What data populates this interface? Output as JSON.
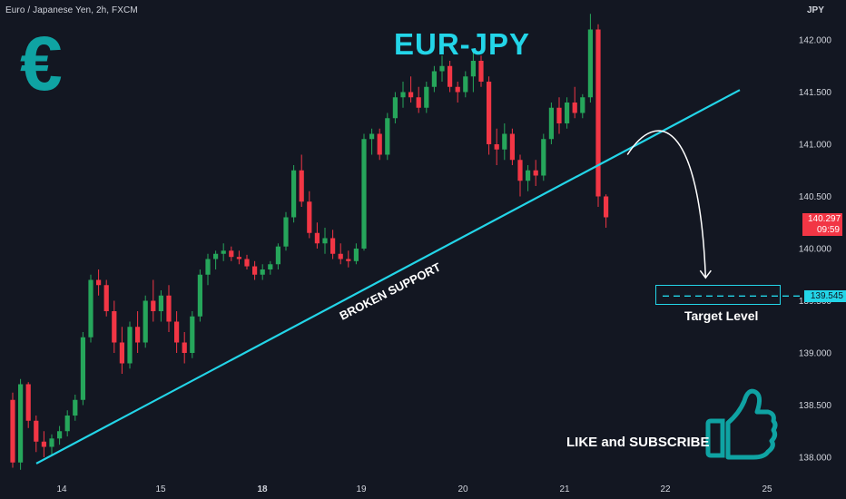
{
  "header": {
    "symbol_line": "Euro / Japanese Yen, 2h, FXCM",
    "currency": "JPY"
  },
  "title": "EUR-JPY",
  "logo_symbol": "€",
  "annotations": {
    "trendline_label": "BROKEN SUPPORT",
    "target_label": "Target Level",
    "cta": "LIKE and SUBSCRIBE"
  },
  "price_tags": {
    "last_price": "140.297",
    "countdown": "09:59",
    "target_price": "139.545"
  },
  "colors": {
    "background": "#131722",
    "up": "#26a65b",
    "down": "#f23645",
    "accent": "#23d5e8",
    "logo": "#0fa3a3"
  },
  "chart_data": {
    "type": "candlestick",
    "y_axis": {
      "ticks": [
        "142.000",
        "141.500",
        "141.000",
        "140.500",
        "140.000",
        "139.500",
        "139.000",
        "138.500",
        "138.000"
      ],
      "ylim": [
        137.8,
        142.3
      ]
    },
    "x_axis": {
      "ticks": [
        "14",
        "15",
        "18",
        "19",
        "20",
        "21",
        "22",
        "25"
      ],
      "bold_ticks": [
        "18"
      ]
    },
    "trendline": {
      "from": [
        0.0,
        137.94
      ],
      "to": [
        72.0,
        141.52
      ]
    },
    "target_level": 139.545,
    "projected_path": [
      [
        60.5,
        140.9
      ],
      [
        63.5,
        141.08
      ],
      [
        66.0,
        140.55
      ],
      [
        68.5,
        139.72
      ]
    ],
    "candles": [
      [
        138.55,
        138.62,
        137.9,
        137.95
      ],
      [
        137.95,
        138.75,
        137.88,
        138.7
      ],
      [
        138.7,
        138.72,
        138.28,
        138.35
      ],
      [
        138.35,
        138.4,
        138.05,
        138.15
      ],
      [
        138.15,
        138.25,
        138.0,
        138.1
      ],
      [
        138.1,
        138.22,
        138.02,
        138.18
      ],
      [
        138.18,
        138.3,
        138.12,
        138.25
      ],
      [
        138.25,
        138.45,
        138.2,
        138.4
      ],
      [
        138.4,
        138.6,
        138.35,
        138.55
      ],
      [
        138.55,
        139.2,
        138.5,
        139.15
      ],
      [
        139.15,
        139.75,
        139.1,
        139.7
      ],
      [
        139.7,
        139.8,
        139.55,
        139.65
      ],
      [
        139.65,
        139.7,
        139.35,
        139.4
      ],
      [
        139.4,
        139.5,
        139.0,
        139.1
      ],
      [
        139.1,
        139.25,
        138.8,
        138.9
      ],
      [
        138.9,
        139.3,
        138.85,
        139.25
      ],
      [
        139.25,
        139.4,
        139.0,
        139.1
      ],
      [
        139.1,
        139.55,
        139.05,
        139.5
      ],
      [
        139.5,
        139.7,
        139.3,
        139.4
      ],
      [
        139.4,
        139.6,
        139.3,
        139.55
      ],
      [
        139.55,
        139.65,
        139.2,
        139.3
      ],
      [
        139.3,
        139.4,
        139.0,
        139.1
      ],
      [
        139.1,
        139.2,
        138.9,
        139.0
      ],
      [
        139.0,
        139.4,
        138.95,
        139.35
      ],
      [
        139.35,
        139.8,
        139.3,
        139.75
      ],
      [
        139.75,
        139.95,
        139.65,
        139.9
      ],
      [
        139.9,
        139.98,
        139.8,
        139.95
      ],
      [
        139.95,
        140.05,
        139.88,
        139.98
      ],
      [
        139.98,
        140.02,
        139.88,
        139.92
      ],
      [
        139.92,
        139.98,
        139.85,
        139.9
      ],
      [
        139.9,
        139.94,
        139.8,
        139.83
      ],
      [
        139.83,
        139.88,
        139.7,
        139.75
      ],
      [
        139.75,
        139.85,
        139.7,
        139.8
      ],
      [
        139.8,
        139.88,
        139.75,
        139.85
      ],
      [
        139.85,
        140.05,
        139.8,
        140.02
      ],
      [
        140.02,
        140.35,
        139.98,
        140.3
      ],
      [
        140.3,
        140.8,
        140.25,
        140.75
      ],
      [
        140.75,
        140.9,
        140.4,
        140.45
      ],
      [
        140.45,
        140.55,
        140.1,
        140.15
      ],
      [
        140.15,
        140.25,
        140.0,
        140.05
      ],
      [
        140.05,
        140.2,
        139.95,
        140.1
      ],
      [
        140.1,
        140.18,
        139.9,
        139.95
      ],
      [
        139.95,
        140.05,
        139.85,
        139.9
      ],
      [
        139.9,
        139.98,
        139.82,
        139.88
      ],
      [
        139.88,
        140.05,
        139.85,
        140.0
      ],
      [
        140.0,
        141.1,
        139.98,
        141.05
      ],
      [
        141.05,
        141.15,
        140.9,
        141.1
      ],
      [
        141.1,
        141.15,
        140.85,
        140.9
      ],
      [
        140.9,
        141.3,
        140.85,
        141.25
      ],
      [
        141.25,
        141.5,
        141.2,
        141.45
      ],
      [
        141.45,
        141.6,
        141.35,
        141.5
      ],
      [
        141.5,
        141.65,
        141.4,
        141.45
      ],
      [
        141.45,
        141.55,
        141.3,
        141.35
      ],
      [
        141.35,
        141.6,
        141.3,
        141.55
      ],
      [
        141.55,
        141.75,
        141.5,
        141.7
      ],
      [
        141.7,
        141.85,
        141.6,
        141.75
      ],
      [
        141.75,
        141.8,
        141.5,
        141.55
      ],
      [
        141.55,
        141.6,
        141.4,
        141.5
      ],
      [
        141.5,
        141.7,
        141.45,
        141.65
      ],
      [
        141.65,
        141.9,
        141.5,
        141.8
      ],
      [
        141.8,
        141.85,
        141.55,
        141.6
      ],
      [
        141.6,
        141.65,
        140.9,
        141.0
      ],
      [
        141.0,
        141.15,
        140.8,
        140.95
      ],
      [
        140.95,
        141.2,
        140.85,
        141.1
      ],
      [
        141.1,
        141.15,
        140.8,
        140.85
      ],
      [
        140.85,
        140.9,
        140.5,
        140.65
      ],
      [
        140.65,
        140.8,
        140.55,
        140.75
      ],
      [
        140.75,
        140.85,
        140.6,
        140.7
      ],
      [
        140.7,
        141.1,
        140.65,
        141.05
      ],
      [
        141.05,
        141.4,
        141.0,
        141.35
      ],
      [
        141.35,
        141.45,
        141.1,
        141.2
      ],
      [
        141.2,
        141.45,
        141.15,
        141.4
      ],
      [
        141.4,
        141.55,
        141.25,
        141.3
      ],
      [
        141.3,
        141.48,
        141.25,
        141.45
      ],
      [
        141.45,
        142.25,
        141.4,
        142.1
      ],
      [
        142.1,
        142.15,
        140.4,
        140.5
      ],
      [
        140.5,
        140.52,
        140.2,
        140.3
      ]
    ]
  }
}
